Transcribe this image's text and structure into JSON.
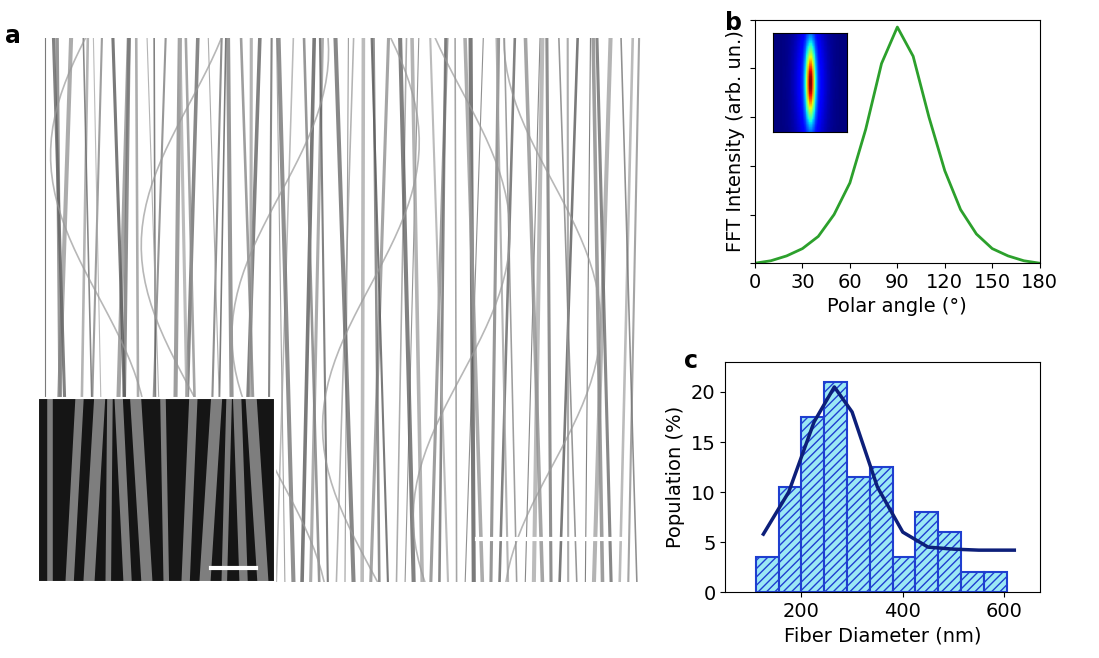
{
  "chart_data": [
    {
      "type": "image",
      "title": "a"
    },
    {
      "type": "line",
      "title": "b",
      "x_label": "Polar angle (°)",
      "y_label": "FFT Intensity (arb. un.)",
      "x": [
        0,
        10,
        20,
        30,
        40,
        50,
        60,
        70,
        80,
        90,
        100,
        110,
        120,
        130,
        140,
        150,
        160,
        170,
        180
      ],
      "values": [
        0.0,
        0.01,
        0.03,
        0.06,
        0.11,
        0.2,
        0.33,
        0.55,
        0.82,
        0.97,
        0.85,
        0.6,
        0.38,
        0.22,
        0.12,
        0.06,
        0.03,
        0.01,
        0.0
      ],
      "color": "#2ca02c",
      "xlim": [
        0,
        180
      ],
      "xticks": [
        0,
        30,
        60,
        90,
        120,
        150,
        180
      ],
      "ylim": [
        0,
        1.0
      ],
      "yticks": [
        0,
        0.2,
        0.4,
        0.6,
        0.8,
        1.0
      ],
      "tick_labels": "x"
    },
    {
      "type": "histogram",
      "title": "c",
      "x_label": "Fiber Diameter (nm)",
      "y_label": "Population (%)",
      "bins": [
        110,
        155,
        200,
        245,
        290,
        335,
        380,
        425,
        470,
        515,
        560,
        605
      ],
      "values": [
        3.5,
        10.5,
        17.5,
        21,
        11.5,
        12.5,
        3.5,
        8,
        6,
        2,
        2
      ],
      "color": "#9be8f5",
      "series": [
        {
          "type": "line",
          "color": "#0d1f7a",
          "x": [
            125,
            175,
            225,
            265,
            300,
            350,
            400,
            450,
            500,
            550,
            620
          ],
          "values": [
            5.8,
            10,
            17,
            20.5,
            18,
            10.5,
            6,
            4.5,
            4.3,
            4.2,
            4.2
          ]
        }
      ],
      "xlim": [
        50,
        670
      ],
      "xticks": [
        200,
        400,
        600
      ],
      "ylim": [
        0,
        23
      ],
      "yticks": [
        0,
        5,
        10,
        15,
        20
      ]
    }
  ]
}
